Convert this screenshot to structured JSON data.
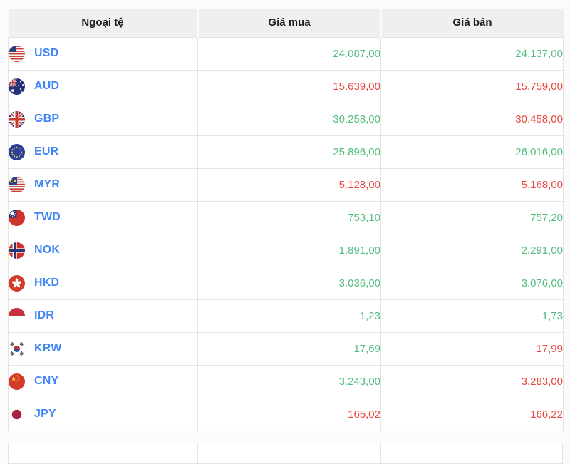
{
  "table": {
    "columns": [
      {
        "key": "currency",
        "label": "Ngoại tệ"
      },
      {
        "key": "buy",
        "label": "Giá mua"
      },
      {
        "key": "sell",
        "label": "Giá bán"
      }
    ],
    "rows": [
      {
        "code": "USD",
        "flag": "us",
        "flag_icon": "usa-flag-icon",
        "buy": "24.087,00",
        "buy_trend": "up",
        "sell": "24.137,00",
        "sell_trend": "up"
      },
      {
        "code": "AUD",
        "flag": "au",
        "flag_icon": "australia-flag-icon",
        "buy": "15.639,00",
        "buy_trend": "down",
        "sell": "15.759,00",
        "sell_trend": "down"
      },
      {
        "code": "GBP",
        "flag": "gb",
        "flag_icon": "uk-flag-icon",
        "buy": "30.258,00",
        "buy_trend": "up",
        "sell": "30.458,00",
        "sell_trend": "down"
      },
      {
        "code": "EUR",
        "flag": "eu",
        "flag_icon": "eu-flag-icon",
        "buy": "25.896,00",
        "buy_trend": "up",
        "sell": "26.016,00",
        "sell_trend": "up"
      },
      {
        "code": "MYR",
        "flag": "my",
        "flag_icon": "malaysia-flag-icon",
        "buy": "5.128,00",
        "buy_trend": "down",
        "sell": "5.168,00",
        "sell_trend": "down"
      },
      {
        "code": "TWD",
        "flag": "tw",
        "flag_icon": "taiwan-flag-icon",
        "buy": "753,10",
        "buy_trend": "up",
        "sell": "757,20",
        "sell_trend": "up"
      },
      {
        "code": "NOK",
        "flag": "no",
        "flag_icon": "norway-flag-icon",
        "buy": "1.891,00",
        "buy_trend": "up",
        "sell": "2.291,00",
        "sell_trend": "up"
      },
      {
        "code": "HKD",
        "flag": "hk",
        "flag_icon": "hongkong-flag-icon",
        "buy": "3.036,00",
        "buy_trend": "up",
        "sell": "3.076,00",
        "sell_trend": "up"
      },
      {
        "code": "IDR",
        "flag": "id",
        "flag_icon": "indonesia-flag-icon",
        "buy": "1,23",
        "buy_trend": "up",
        "sell": "1,73",
        "sell_trend": "up"
      },
      {
        "code": "KRW",
        "flag": "kr",
        "flag_icon": "south-korea-flag-icon",
        "buy": "17,69",
        "buy_trend": "up",
        "sell": "17,99",
        "sell_trend": "down"
      },
      {
        "code": "CNY",
        "flag": "cn",
        "flag_icon": "china-flag-icon",
        "buy": "3.243,00",
        "buy_trend": "up",
        "sell": "3.283,00",
        "sell_trend": "down"
      },
      {
        "code": "JPY",
        "flag": "jp",
        "flag_icon": "japan-flag-icon",
        "buy": "165,02",
        "buy_trend": "down",
        "sell": "166,22",
        "sell_trend": "down"
      }
    ]
  },
  "colors": {
    "up": "#53bd7e",
    "down": "#e8473d",
    "currency_link": "#4285f4",
    "header_bg": "#efefef",
    "border": "#e3e3e3",
    "page_bg": "#fbfbfb"
  }
}
